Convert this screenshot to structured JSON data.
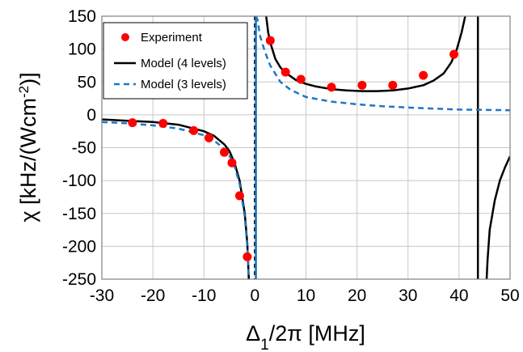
{
  "chart_data": {
    "type": "scatter",
    "xlabel": "Δ₁/2π [MHz]",
    "ylabel_parts": [
      "χ [kHz/(Wcm",
      "-2",
      ")]"
    ],
    "xlim": [
      -30,
      50
    ],
    "ylim": [
      -250,
      150
    ],
    "xticks": [
      -30,
      -20,
      -10,
      0,
      10,
      20,
      30,
      40,
      50
    ],
    "yticks": [
      -250,
      -200,
      -150,
      -100,
      -50,
      0,
      50,
      100,
      150
    ],
    "grid": true,
    "legend_position": "top-left",
    "series": [
      {
        "name": "Experiment",
        "kind": "points",
        "color": "#ff0000",
        "points": [
          {
            "x": -24,
            "y": -12
          },
          {
            "x": -18,
            "y": -13
          },
          {
            "x": -12,
            "y": -24
          },
          {
            "x": -9,
            "y": -35
          },
          {
            "x": -6,
            "y": -57
          },
          {
            "x": -4.5,
            "y": -73
          },
          {
            "x": -3,
            "y": -123
          },
          {
            "x": -1.5,
            "y": -216
          },
          {
            "x": 3,
            "y": 113
          },
          {
            "x": 6,
            "y": 65
          },
          {
            "x": 9,
            "y": 54
          },
          {
            "x": 15,
            "y": 42
          },
          {
            "x": 21,
            "y": 45
          },
          {
            "x": 27,
            "y": 45
          },
          {
            "x": 33,
            "y": 60
          },
          {
            "x": 39,
            "y": 92
          }
        ]
      },
      {
        "name": "Model (4 levels)",
        "kind": "line",
        "color": "#000000",
        "dash": "none",
        "segments": [
          [
            [
              -30,
              -7
            ],
            [
              -25,
              -9
            ],
            [
              -20,
              -11
            ],
            [
              -15,
              -15
            ],
            [
              -10,
              -25
            ],
            [
              -8,
              -32
            ],
            [
              -6,
              -45
            ],
            [
              -5,
              -55
            ],
            [
              -4,
              -73
            ],
            [
              -3,
              -100
            ],
            [
              -2,
              -150
            ],
            [
              -1.5,
              -195
            ],
            [
              -1.2,
              -250
            ]
          ],
          [
            [
              2.2,
              150
            ],
            [
              2.6,
              125
            ],
            [
              3,
              110
            ],
            [
              4,
              85
            ],
            [
              5,
              72
            ],
            [
              6,
              64
            ],
            [
              8,
              53
            ],
            [
              10,
              47
            ],
            [
              12,
              43
            ],
            [
              15,
              39
            ],
            [
              18,
              37
            ],
            [
              21,
              36
            ],
            [
              24,
              36
            ],
            [
              27,
              37
            ],
            [
              30,
              40
            ],
            [
              33,
              45
            ],
            [
              35,
              52
            ],
            [
              37,
              63
            ],
            [
              38.5,
              80
            ],
            [
              39.5,
              98
            ],
            [
              40.5,
              125
            ],
            [
              41.2,
              150
            ]
          ],
          [
            [
              43.7,
              150
            ],
            [
              43.7,
              -250
            ]
          ],
          [
            [
              45.4,
              -250
            ],
            [
              45.6,
              -220
            ],
            [
              46,
              -175
            ],
            [
              47,
              -130
            ],
            [
              48,
              -100
            ],
            [
              49,
              -80
            ],
            [
              50,
              -63
            ]
          ]
        ]
      },
      {
        "name": "Model (3 levels)",
        "kind": "line",
        "color": "#1f77c4",
        "dash": "7,5",
        "segments": [
          [
            [
              -30,
              -11
            ],
            [
              -25,
              -13
            ],
            [
              -20,
              -16
            ],
            [
              -15,
              -21
            ],
            [
              -10,
              -31
            ],
            [
              -8,
              -39
            ],
            [
              -6,
              -52
            ],
            [
              -5,
              -62
            ],
            [
              -4,
              -78
            ],
            [
              -3,
              -105
            ],
            [
              -2,
              -155
            ],
            [
              -1.5,
              -200
            ],
            [
              -1.2,
              -250
            ]
          ],
          [
            [
              0.2,
              150
            ],
            [
              0.5,
              145
            ],
            [
              1,
              120
            ],
            [
              2,
              95
            ],
            [
              3,
              75
            ],
            [
              5,
              50
            ],
            [
              7,
              38
            ],
            [
              10,
              27
            ],
            [
              15,
              20
            ],
            [
              20,
              16
            ],
            [
              25,
              13
            ],
            [
              30,
              11
            ],
            [
              35,
              9.5
            ],
            [
              40,
              8
            ],
            [
              45,
              7.5
            ],
            [
              50,
              7
            ]
          ]
        ]
      },
      {
        "name": "",
        "kind": "line",
        "color": "#000000",
        "dash": "5,4",
        "segments": [
          [
            [
              0,
              150
            ],
            [
              0,
              -250
            ]
          ]
        ]
      },
      {
        "name": "",
        "kind": "line",
        "color": "#1f77c4",
        "dash": "none",
        "segments": [
          [
            [
              0.2,
              150
            ],
            [
              0.2,
              -250
            ]
          ]
        ]
      }
    ]
  }
}
